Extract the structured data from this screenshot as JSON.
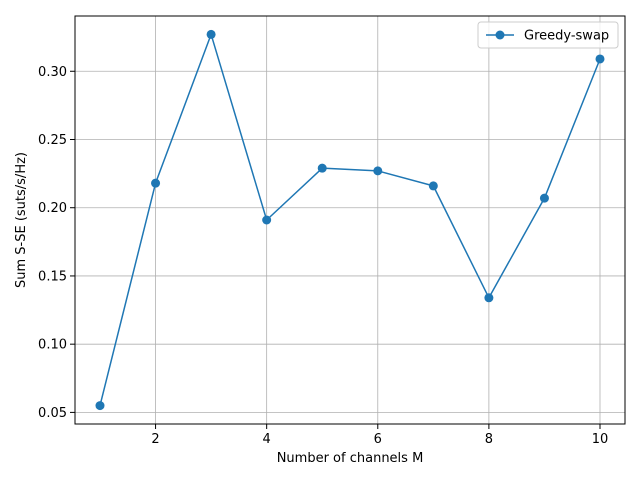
{
  "chart_data": {
    "type": "line",
    "title": "",
    "xlabel": "Number of channels M",
    "ylabel": "Sum S-SE (suts/s/Hz)",
    "xlim": [
      0.55,
      10.45
    ],
    "ylim": [
      0.0415,
      0.3405
    ],
    "x_ticks": [
      2,
      4,
      6,
      8,
      10
    ],
    "x_tick_labels": [
      "2",
      "4",
      "6",
      "8",
      "10"
    ],
    "y_ticks": [
      0.05,
      0.1,
      0.15,
      0.2,
      0.25,
      0.3
    ],
    "y_tick_labels": [
      "0.05",
      "0.10",
      "0.15",
      "0.20",
      "0.25",
      "0.30"
    ],
    "grid": true,
    "legend_position": "top-right",
    "series": [
      {
        "name": "Greedy-swap",
        "color": "#1f77b4",
        "marker": "circle",
        "x": [
          1,
          2,
          3,
          4,
          5,
          6,
          7,
          8,
          9,
          10
        ],
        "y": [
          0.055,
          0.218,
          0.327,
          0.191,
          0.229,
          0.227,
          0.216,
          0.134,
          0.207,
          0.309
        ]
      }
    ]
  }
}
